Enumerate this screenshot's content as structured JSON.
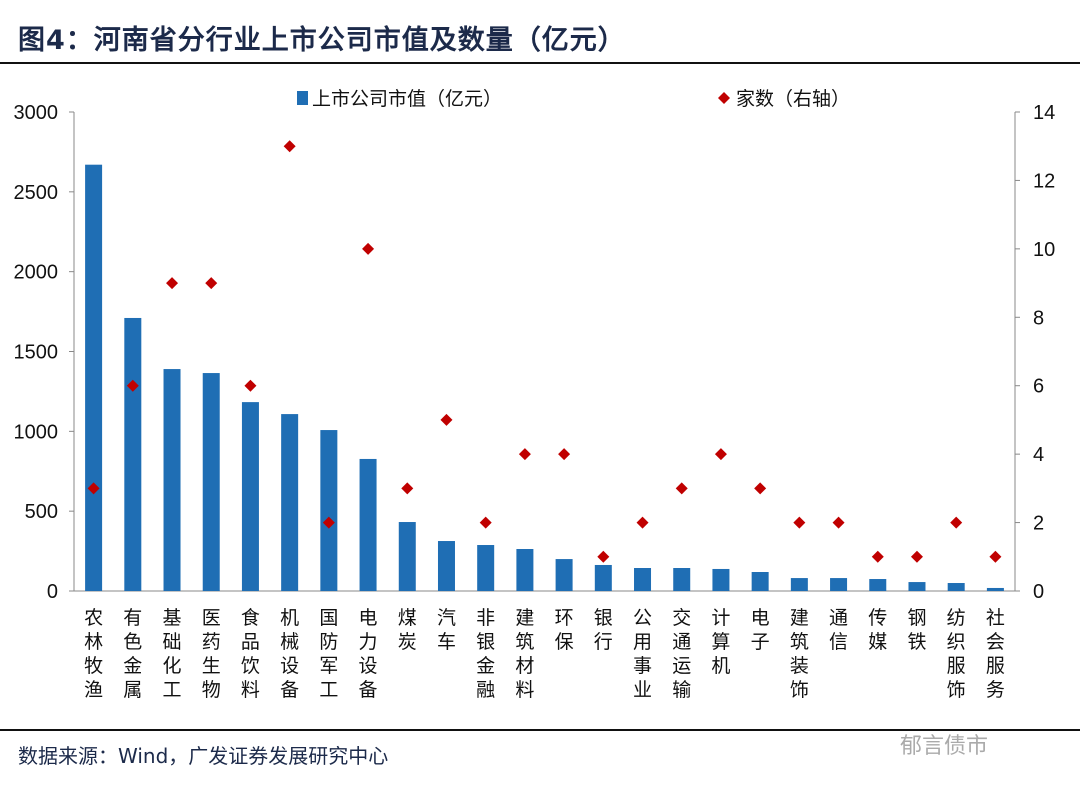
{
  "title": "图4：河南省分行业上市公司市值及数量（亿元）",
  "source": "数据来源：Wind，广发证券发展研究中心",
  "watermark": "郁言债市",
  "chart_data": {
    "type": "bar+scatter",
    "title": "图4：河南省分行业上市公司市值及数量（亿元）",
    "categories": [
      "农林牧渔",
      "有色金属",
      "基础化工",
      "医药生物",
      "食品饮料",
      "机械设备",
      "国防军工",
      "电力设备",
      "煤炭",
      "汽车",
      "非银金融",
      "建筑材料",
      "环保",
      "银行",
      "公用事业",
      "交通运输",
      "计算机",
      "电子",
      "建筑装饰",
      "通信",
      "传媒",
      "钢铁",
      "纺织服饰",
      "社会服务"
    ],
    "series": [
      {
        "name": "上市公司市值（亿元）",
        "type": "bar",
        "axis": "left",
        "color": "#1f6eb4",
        "values": [
          2670,
          1710,
          1390,
          1365,
          1183,
          1108,
          1008,
          827,
          432,
          313,
          288,
          263,
          200,
          163,
          144,
          144,
          138,
          119,
          81,
          81,
          75,
          56,
          50,
          19
        ]
      },
      {
        "name": "家数（右轴）",
        "type": "scatter",
        "marker": "diamond",
        "axis": "right",
        "color": "#c00000",
        "values": [
          3,
          6,
          9,
          9,
          6,
          13,
          2,
          10,
          3,
          5,
          2,
          4,
          4,
          1,
          2,
          3,
          4,
          3,
          2,
          2,
          1,
          1,
          2,
          1
        ]
      }
    ],
    "y_left": {
      "lim": [
        0,
        3000
      ],
      "ticks": [
        0,
        500,
        1000,
        1500,
        2000,
        2500,
        3000
      ]
    },
    "y_right": {
      "lim": [
        0,
        14
      ],
      "ticks": [
        0,
        2,
        4,
        6,
        8,
        10,
        12,
        14
      ]
    },
    "grid": false,
    "legend": "top"
  }
}
